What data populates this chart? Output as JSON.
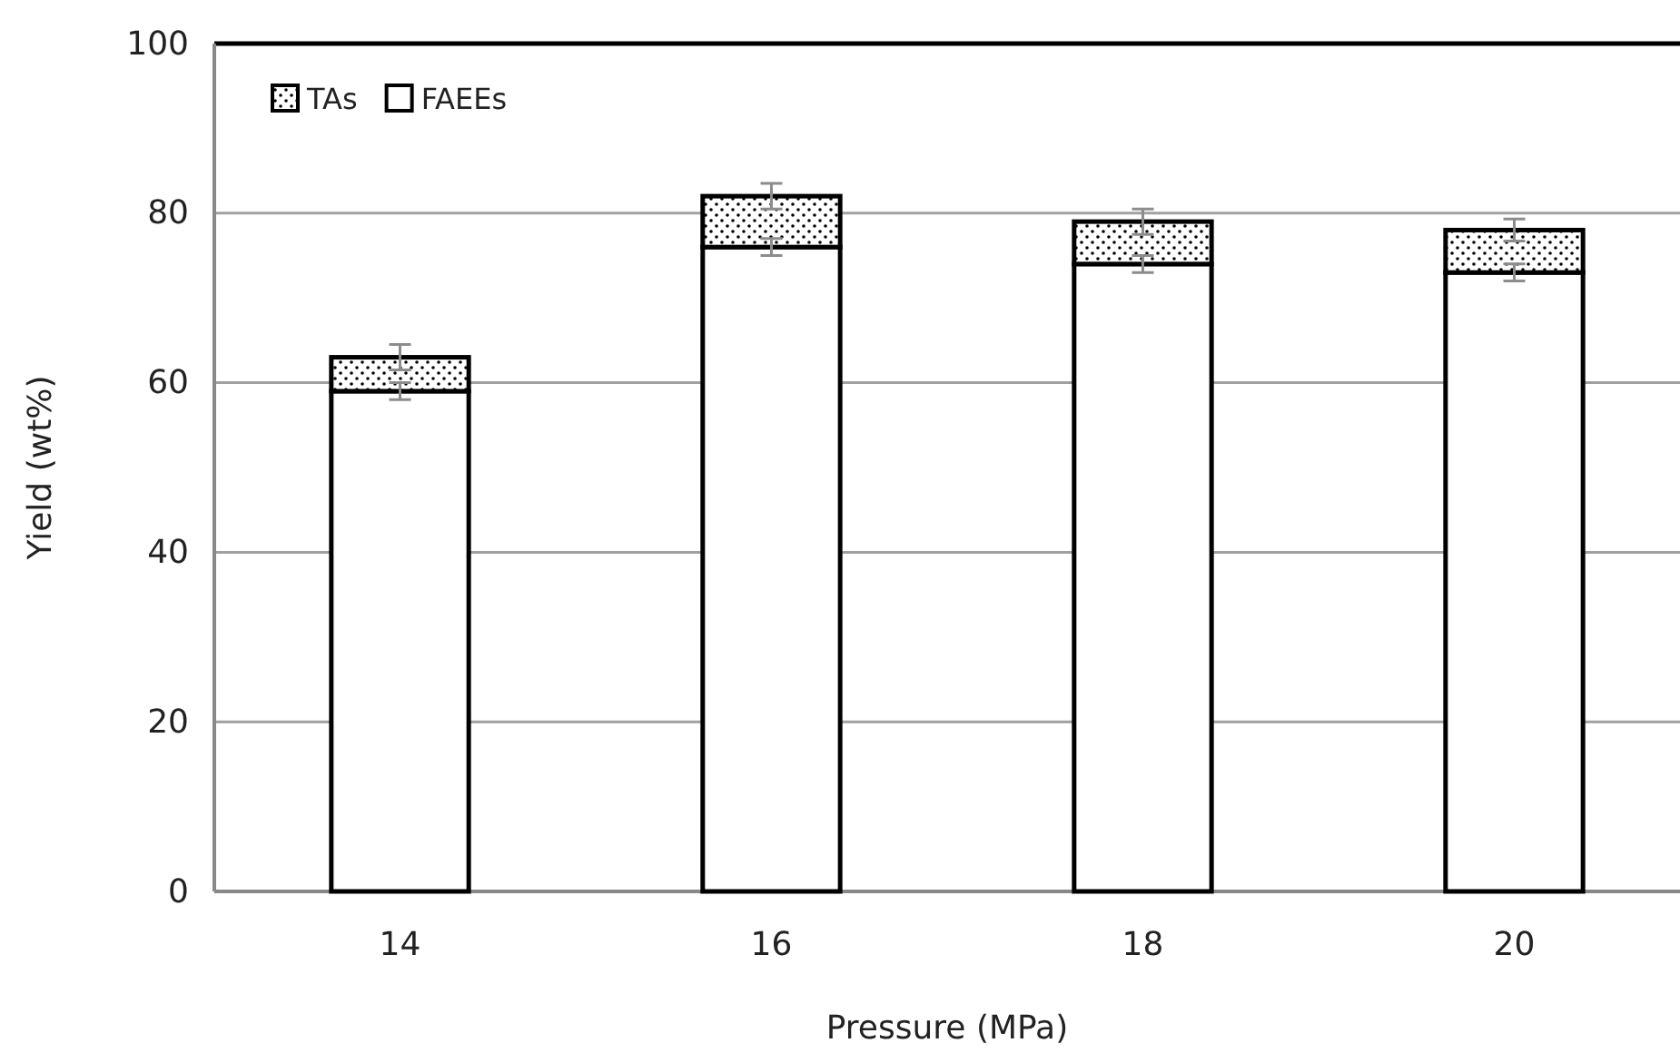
{
  "chart_data": {
    "type": "bar",
    "stacked": true,
    "xlabel": "Pressure (MPa)",
    "ylabel": "Yield (wt%)",
    "categories": [
      "14",
      "16",
      "18",
      "20"
    ],
    "series": [
      {
        "name": "FAEEs",
        "color": "#ffffff",
        "values": [
          59,
          76,
          74,
          73
        ],
        "errors": [
          1,
          1,
          1,
          1
        ]
      },
      {
        "name": "TAs",
        "color": "#000000",
        "values": [
          4,
          6,
          5,
          5
        ],
        "errors": [
          1.5,
          1.5,
          1.5,
          1.3
        ]
      }
    ],
    "ylim": [
      0,
      100
    ],
    "yticks": [
      0,
      20,
      40,
      60,
      80,
      100
    ],
    "grid": "y",
    "legend": "top left"
  }
}
